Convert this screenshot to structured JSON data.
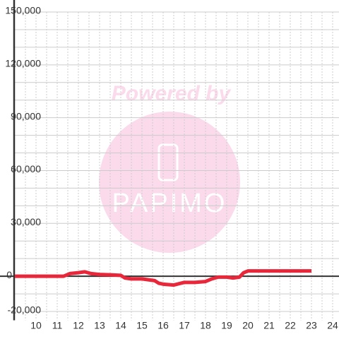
{
  "chart_data": {
    "type": "line",
    "watermark": {
      "line1": "Powered by",
      "line2": "PAPIMO"
    },
    "x": [
      9,
      10,
      11,
      11.3,
      11.6,
      12,
      12.3,
      12.6,
      13,
      13.5,
      14,
      14.2,
      14.5,
      15,
      15.3,
      15.6,
      15.8,
      16,
      16.5,
      17,
      17.5,
      18,
      18.3,
      18.6,
      19,
      19.3,
      19.6,
      19.8,
      20,
      21,
      22,
      23
    ],
    "series": [
      {
        "color": "#e8283a",
        "values": [
          0,
          0,
          0,
          0,
          1500,
          2000,
          2500,
          1500,
          1000,
          800,
          500,
          -1000,
          -1500,
          -1500,
          -2000,
          -2500,
          -4000,
          -4500,
          -5000,
          -3500,
          -3500,
          -3000,
          -1500,
          -500,
          -500,
          -1000,
          -500,
          2000,
          3000,
          3000,
          3000,
          3000
        ]
      }
    ],
    "xlim": [
      9,
      24.3
    ],
    "xticks": [
      10,
      11,
      12,
      13,
      14,
      15,
      16,
      17,
      18,
      19,
      20,
      21,
      22,
      23,
      24
    ],
    "x_minor_grid": [
      9.5,
      10.5,
      11.5,
      12.5,
      13.5,
      14.5,
      15.5,
      16.5,
      17.5,
      18.5,
      19.5,
      20.5,
      21.5,
      22.5,
      23.5
    ],
    "ylim": [
      -21000,
      150000
    ],
    "yticks": [
      {
        "value": 150000,
        "label": "150,000"
      },
      {
        "value": 120000,
        "label": "120,000"
      },
      {
        "value": 90000,
        "label": "90,000"
      },
      {
        "value": 60000,
        "label": "60,000"
      },
      {
        "value": 30000,
        "label": "30,000"
      },
      0,
      {
        "value": -20000,
        "label": "-20,000"
      }
    ],
    "y_minor_grid": [
      -10000,
      10000,
      20000,
      40000,
      50000,
      70000,
      80000,
      100000,
      110000,
      130000,
      140000
    ],
    "grid": true
  }
}
